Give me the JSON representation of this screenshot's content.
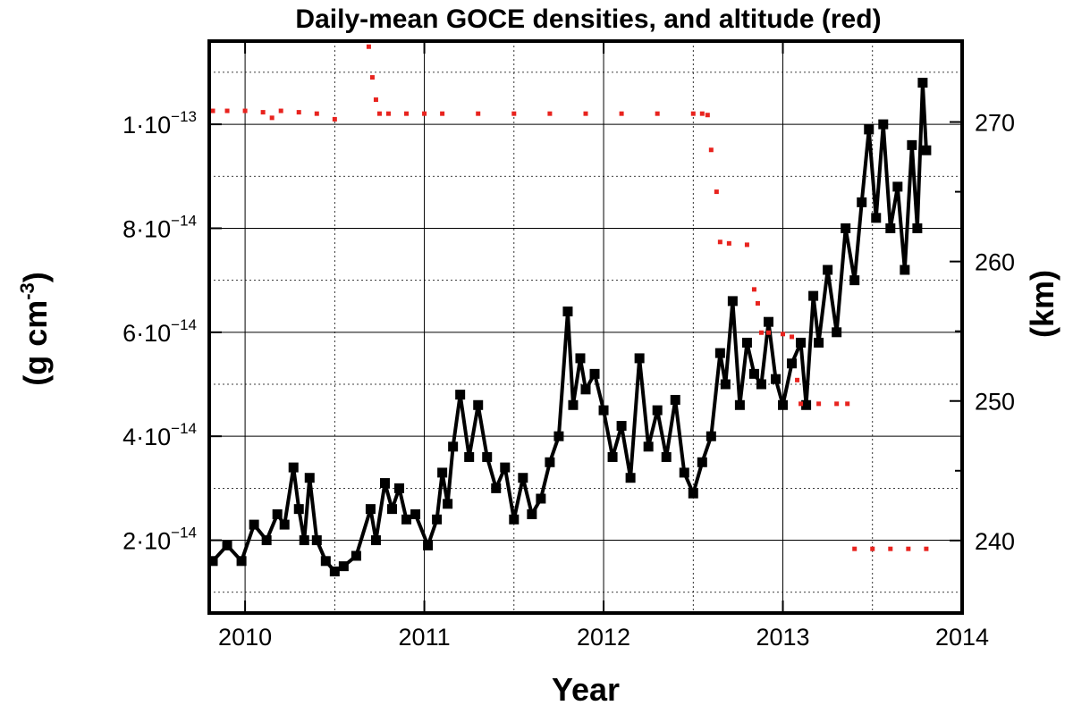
{
  "chart_data": {
    "type": "line",
    "title": "Daily-mean GOCE densities, and altitude (red)",
    "xlabel": "Year",
    "ylabel": "(g cm-3)",
    "ylabel_main": "(g cm",
    "ylabel_sup": "-3",
    "ylabel_close": ")",
    "y2label": "(km)",
    "xlim": [
      2009.8,
      2014.0
    ],
    "ylim": [
      6e-15,
      1.16e-13
    ],
    "y2lim": [
      234.8,
      275.8
    ],
    "grid": true,
    "x_ticks": [
      {
        "value": 2010,
        "label": "2010"
      },
      {
        "value": 2011,
        "label": "2011"
      },
      {
        "value": 2012,
        "label": "2012"
      },
      {
        "value": 2013,
        "label": "2013"
      },
      {
        "value": 2014,
        "label": "2014"
      }
    ],
    "y_ticks": [
      {
        "value": 2e-14,
        "mant": "2·10",
        "exp": "−14"
      },
      {
        "value": 4e-14,
        "mant": "4·10",
        "exp": "−14"
      },
      {
        "value": 6e-14,
        "mant": "6·10",
        "exp": "−14"
      },
      {
        "value": 8e-14,
        "mant": "8·10",
        "exp": "−14"
      },
      {
        "value": 1e-13,
        "mant": "1·10",
        "exp": "−13"
      }
    ],
    "y2_ticks": [
      {
        "value": 240,
        "label": "240"
      },
      {
        "value": 250,
        "label": "250"
      },
      {
        "value": 260,
        "label": "260"
      },
      {
        "value": 270,
        "label": "270"
      }
    ],
    "series": [
      {
        "color": "#000000",
        "axis": "left",
        "marker": "square",
        "x": [
          2009.82,
          2009.9,
          2009.98,
          2010.05,
          2010.12,
          2010.18,
          2010.22,
          2010.27,
          2010.3,
          2010.33,
          2010.36,
          2010.4,
          2010.45,
          2010.5,
          2010.55,
          2010.62,
          2010.7,
          2010.73,
          2010.78,
          2010.82,
          2010.86,
          2010.9,
          2010.95,
          2011.02,
          2011.07,
          2011.1,
          2011.13,
          2011.16,
          2011.2,
          2011.25,
          2011.3,
          2011.35,
          2011.4,
          2011.45,
          2011.5,
          2011.55,
          2011.6,
          2011.65,
          2011.7,
          2011.75,
          2011.8,
          2011.83,
          2011.87,
          2011.9,
          2011.95,
          2012.0,
          2012.05,
          2012.1,
          2012.15,
          2012.2,
          2012.25,
          2012.3,
          2012.35,
          2012.4,
          2012.45,
          2012.5,
          2012.55,
          2012.6,
          2012.65,
          2012.68,
          2012.72,
          2012.76,
          2012.8,
          2012.84,
          2012.88,
          2012.92,
          2012.96,
          2013.0,
          2013.05,
          2013.1,
          2013.13,
          2013.17,
          2013.2,
          2013.25,
          2013.3,
          2013.35,
          2013.4,
          2013.44,
          2013.48,
          2013.52,
          2013.56,
          2013.6,
          2013.64,
          2013.68,
          2013.72,
          2013.75,
          2013.78,
          2013.8
        ],
        "y": [
          1.6e-14,
          1.9e-14,
          1.6e-14,
          2.3e-14,
          2e-14,
          2.5e-14,
          2.3e-14,
          3.4e-14,
          2.6e-14,
          2e-14,
          3.2e-14,
          2e-14,
          1.6e-14,
          1.4e-14,
          1.5e-14,
          1.7e-14,
          2.6e-14,
          2e-14,
          3.1e-14,
          2.6e-14,
          3e-14,
          2.4e-14,
          2.5e-14,
          1.9e-14,
          2.4e-14,
          3.3e-14,
          2.7e-14,
          3.8e-14,
          4.8e-14,
          3.6e-14,
          4.6e-14,
          3.6e-14,
          3e-14,
          3.4e-14,
          2.4e-14,
          3.2e-14,
          2.5e-14,
          2.8e-14,
          3.5e-14,
          4e-14,
          6.4e-14,
          4.6e-14,
          5.5e-14,
          4.9e-14,
          5.2e-14,
          4.5e-14,
          3.6e-14,
          4.2e-14,
          3.2e-14,
          5.5e-14,
          3.8e-14,
          4.5e-14,
          3.6e-14,
          4.7e-14,
          3.3e-14,
          2.9e-14,
          3.5e-14,
          4e-14,
          5.6e-14,
          5e-14,
          6.6e-14,
          4.6e-14,
          5.8e-14,
          5.2e-14,
          5e-14,
          6.2e-14,
          5.1e-14,
          4.6e-14,
          5.4e-14,
          5.8e-14,
          4.6e-14,
          6.7e-14,
          5.8e-14,
          7.2e-14,
          6e-14,
          8e-14,
          7e-14,
          8.5e-14,
          9.9e-14,
          8.2e-14,
          1e-13,
          8e-14,
          8.8e-14,
          7.2e-14,
          9.6e-14,
          8e-14,
          1.08e-13,
          9.5e-14
        ]
      },
      {
        "color": "#e8231e",
        "axis": "right",
        "marker": "dot",
        "x": [
          2009.82,
          2009.9,
          2010.0,
          2010.1,
          2010.15,
          2010.2,
          2010.3,
          2010.4,
          2010.5,
          2010.69,
          2010.71,
          2010.73,
          2010.75,
          2010.8,
          2010.9,
          2011.0,
          2011.1,
          2011.3,
          2011.5,
          2011.7,
          2011.9,
          2012.1,
          2012.3,
          2012.5,
          2012.55,
          2012.58,
          2012.6,
          2012.63,
          2012.65,
          2012.7,
          2012.8,
          2012.84,
          2012.86,
          2012.88,
          2012.92,
          2013.0,
          2013.05,
          2013.08,
          2013.1,
          2013.2,
          2013.3,
          2013.36,
          2013.4,
          2013.5,
          2013.6,
          2013.7,
          2013.8
        ],
        "y": [
          270.8,
          270.8,
          270.8,
          270.7,
          270.3,
          270.8,
          270.7,
          270.6,
          270.2,
          275.4,
          273.2,
          271.6,
          270.6,
          270.6,
          270.6,
          270.6,
          270.6,
          270.6,
          270.6,
          270.6,
          270.6,
          270.6,
          270.6,
          270.6,
          270.6,
          270.5,
          268.0,
          265.0,
          261.4,
          261.3,
          261.2,
          258.0,
          257.0,
          254.9,
          254.9,
          254.8,
          254.6,
          251.5,
          249.8,
          249.8,
          249.8,
          249.8,
          239.4,
          239.4,
          239.4,
          239.4,
          239.4
        ]
      }
    ]
  }
}
